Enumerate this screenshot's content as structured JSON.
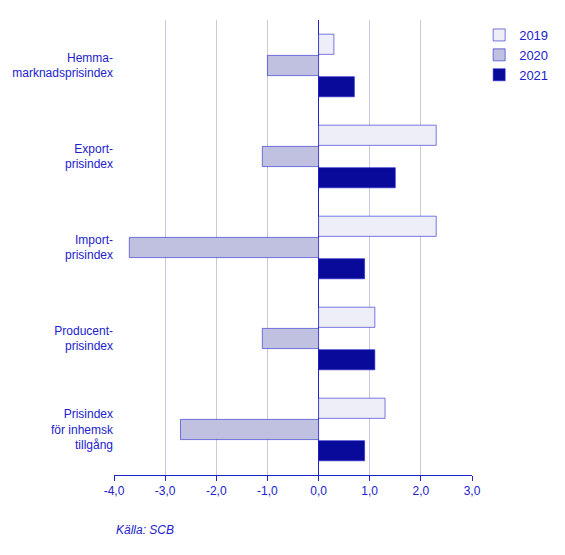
{
  "chart_data": {
    "type": "bar",
    "orientation": "horizontal",
    "categories": [
      "Hemma-\nmarknadsprisindex",
      "Export-\nprisindex",
      "Import-\nprisindex",
      "Producent-\nprisindex",
      "Prisindex\nför inhemsk\ntillgång"
    ],
    "series": [
      {
        "name": "2019",
        "color": "#eeeef8",
        "values": [
          0.3,
          2.3,
          2.3,
          1.1,
          1.3
        ]
      },
      {
        "name": "2020",
        "color": "#c0c0e0",
        "values": [
          -1.0,
          -1.1,
          -3.7,
          -1.1,
          -2.7
        ]
      },
      {
        "name": "2021",
        "color": "#0a0a9a",
        "values": [
          0.7,
          1.5,
          0.9,
          1.1,
          0.9
        ]
      }
    ],
    "xlim": [
      -4.0,
      3.0
    ],
    "xticks": [
      {
        "value": -4.0,
        "label": "-4,0"
      },
      {
        "value": -3.0,
        "label": "-3,0"
      },
      {
        "value": -2.0,
        "label": "-2,0"
      },
      {
        "value": -1.0,
        "label": "-1,0"
      },
      {
        "value": 0.0,
        "label": "0,0"
      },
      {
        "value": 1.0,
        "label": "1,0"
      },
      {
        "value": 2.0,
        "label": "2,0"
      },
      {
        "value": 3.0,
        "label": "3,0"
      }
    ],
    "grid": true,
    "legend": "upper right",
    "annotations": [
      "Källa: SCB"
    ]
  }
}
